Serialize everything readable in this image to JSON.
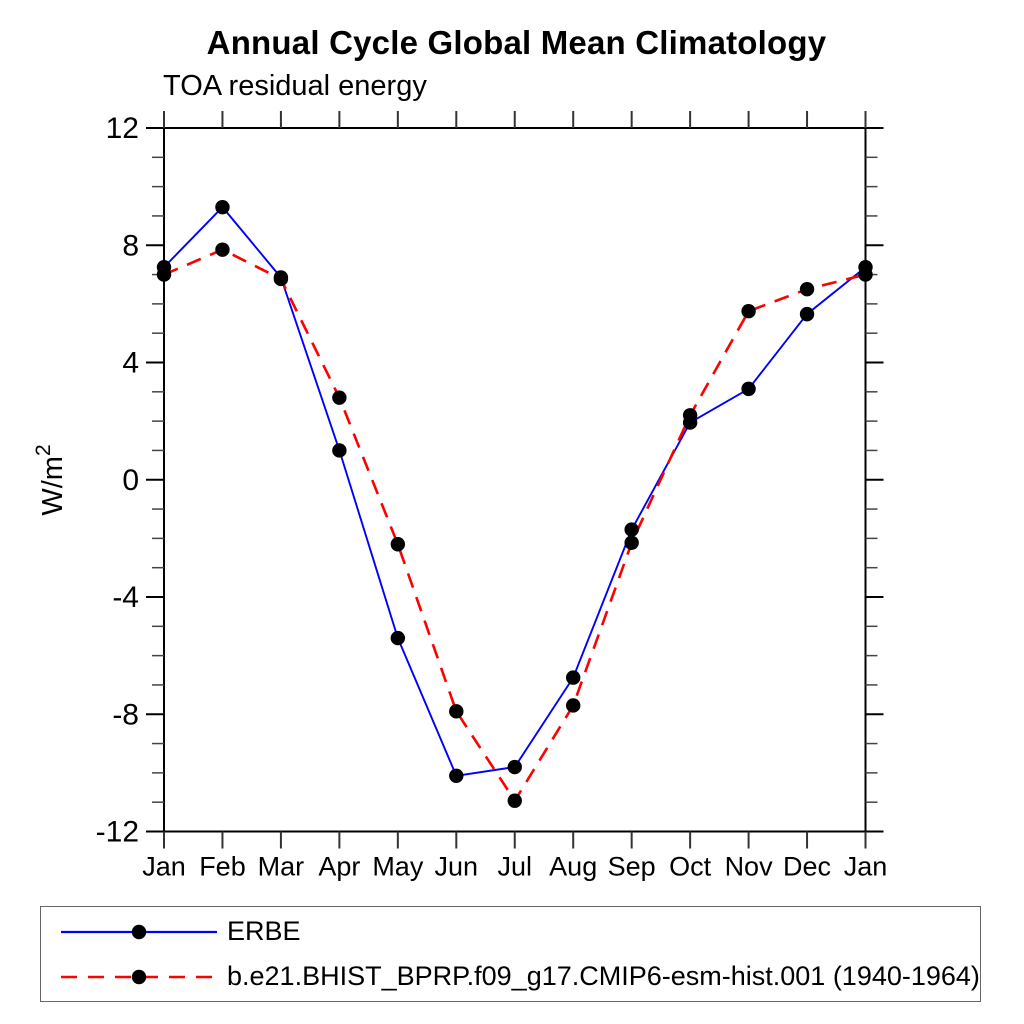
{
  "chart_data": {
    "type": "line",
    "title": "Annual Cycle Global Mean Climatology",
    "subtitle": "TOA residual energy",
    "ylabel": "W/m²",
    "ylabel_parts": {
      "base": "W/m",
      "exponent": "2"
    },
    "categories": [
      "Jan",
      "Feb",
      "Mar",
      "Apr",
      "May",
      "Jun",
      "Jul",
      "Aug",
      "Sep",
      "Oct",
      "Nov",
      "Dec",
      "Jan"
    ],
    "series": [
      {
        "name": "ERBE",
        "line_color": "#0000ff",
        "line_style": "solid",
        "marker": "filled-circle",
        "marker_color": "#000000",
        "values": [
          7.25,
          9.3,
          6.9,
          1.0,
          -5.4,
          -10.1,
          -9.8,
          -6.75,
          -1.7,
          1.95,
          3.1,
          5.65,
          7.25
        ]
      },
      {
        "name": "b.e21.BHIST_BPRP.f09_g17.CMIP6-esm-hist.001 (1940-1964)",
        "line_color": "#ff0000",
        "line_style": "dashed",
        "marker": "filled-circle",
        "marker_color": "#000000",
        "values": [
          7.0,
          7.85,
          6.85,
          2.8,
          -2.2,
          -7.9,
          -10.95,
          -7.7,
          -2.15,
          2.2,
          5.75,
          6.5,
          7.0
        ]
      }
    ],
    "ylim": [
      -12,
      12
    ],
    "yticks_major": [
      -12,
      -8,
      -4,
      0,
      4,
      8,
      12
    ],
    "ytick_minor_step": 1,
    "xticks": "one tick per month, top and bottom, no minor ticks",
    "grid": false,
    "frame": "full box with outward ticks on all sides",
    "legend_position": "boxed legend below plot, left aligned"
  }
}
